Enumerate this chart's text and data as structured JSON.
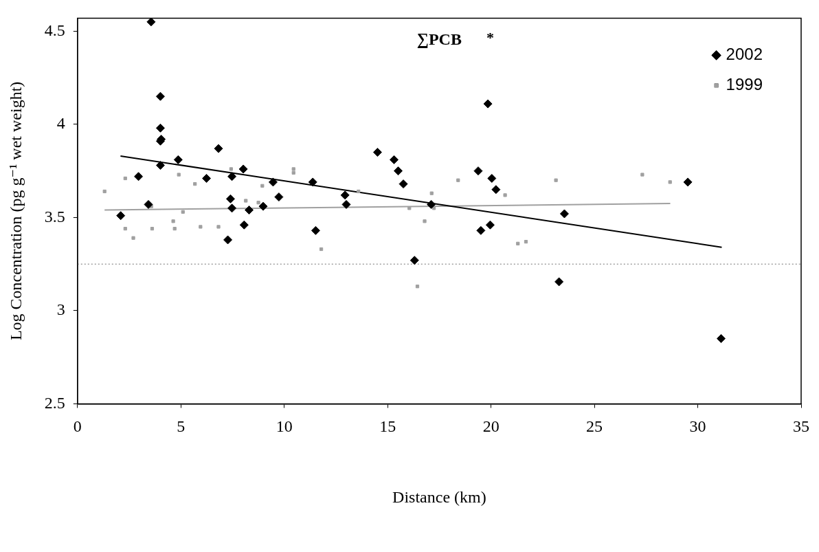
{
  "chart_data": {
    "type": "scatter",
    "title": "∑PCB",
    "annotations": [
      "*"
    ],
    "xlabel": "Distance (km)",
    "ylabel": "Log Concentration (pg g⁻¹ wet weight)",
    "xlim": [
      0,
      35
    ],
    "xticks": [
      0,
      5,
      10,
      15,
      20,
      25,
      30,
      35
    ],
    "ylim": [
      2.5,
      4.57
    ],
    "yticks": [
      2.5,
      3,
      3.5,
      4,
      4.5
    ],
    "grid": false,
    "legend": "top right",
    "ref_lines": [
      {
        "axis": "y",
        "value": 3.25,
        "color": "#a0a0a0",
        "line_style": "dotted"
      }
    ],
    "series": [
      {
        "name": "2002",
        "color": "#000000",
        "marker": "diamond",
        "x": [
          3.56,
          4.01,
          4.01,
          4.05,
          4.01,
          4.01,
          4.87,
          6.82,
          2.95,
          6.24,
          7.47,
          8.02,
          9.46,
          11.38,
          9.74,
          7.4,
          3.43,
          2.09,
          7.47,
          8.3,
          8.98,
          8.06,
          11.52,
          7.27,
          14.51,
          15.31,
          15.51,
          15.76,
          12.94,
          13.0,
          16.3,
          19.38,
          20.04,
          20.24,
          19.51,
          19.96,
          17.11,
          23.55,
          29.52,
          23.29,
          31.13,
          19.85
        ],
        "values": [
          4.55,
          4.15,
          3.98,
          3.92,
          3.91,
          3.78,
          3.81,
          3.87,
          3.72,
          3.71,
          3.72,
          3.76,
          3.69,
          3.69,
          3.61,
          3.6,
          3.57,
          3.51,
          3.55,
          3.54,
          3.56,
          3.46,
          3.43,
          3.38,
          3.85,
          3.81,
          3.75,
          3.68,
          3.62,
          3.57,
          3.27,
          3.75,
          3.71,
          3.65,
          3.43,
          3.46,
          3.57,
          3.52,
          3.69,
          3.155,
          2.85,
          4.11
        ]
      },
      {
        "name": "1999",
        "color": "#a0a0a0",
        "marker": "square",
        "x": [
          1.31,
          2.31,
          4.9,
          5.68,
          7.43,
          10.45,
          10.45,
          8.94,
          8.14,
          8.75,
          3.57,
          5.1,
          4.63,
          2.31,
          3.61,
          4.7,
          5.95,
          6.82,
          2.7,
          13.59,
          11.79,
          16.05,
          17.13,
          17.24,
          16.79,
          18.41,
          20.68,
          21.3,
          21.69,
          16.44,
          23.14,
          27.32,
          28.66
        ],
        "values": [
          3.64,
          3.71,
          3.73,
          3.68,
          3.76,
          3.76,
          3.74,
          3.67,
          3.59,
          3.58,
          3.56,
          3.53,
          3.48,
          3.44,
          3.44,
          3.44,
          3.45,
          3.45,
          3.39,
          3.64,
          3.33,
          3.55,
          3.63,
          3.55,
          3.48,
          3.7,
          3.62,
          3.36,
          3.37,
          3.13,
          3.7,
          3.73,
          3.69
        ]
      },
      {
        "type": "line",
        "color": "#000000",
        "marker": "none",
        "x": [
          2.08,
          31.16
        ],
        "values": [
          3.83,
          3.34
        ]
      },
      {
        "type": "line",
        "color": "#a0a0a0",
        "marker": "none",
        "x": [
          1.31,
          28.67
        ],
        "values": [
          3.54,
          3.575
        ]
      }
    ]
  }
}
